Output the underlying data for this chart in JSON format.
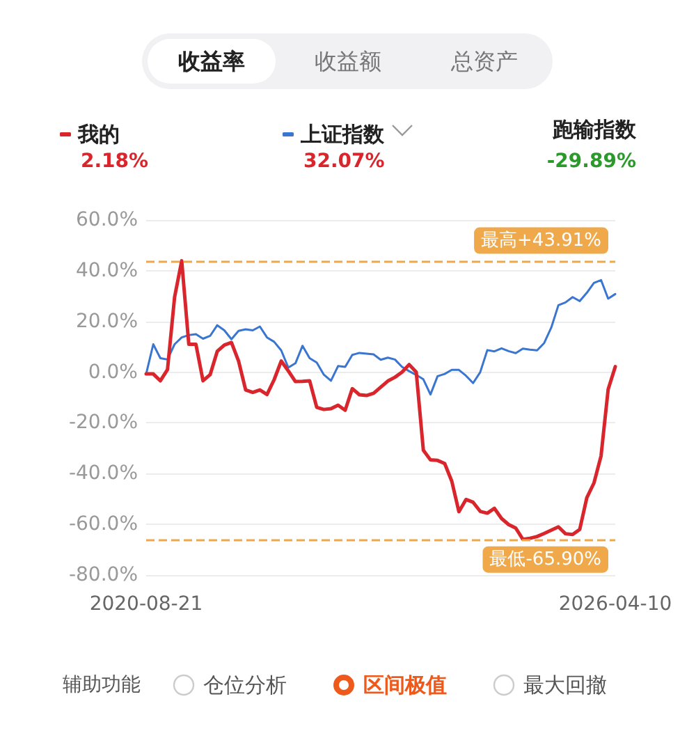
{
  "chart_data": {
    "type": "line",
    "categories": [
      "2020-08-21",
      null,
      null,
      null,
      null,
      null,
      null,
      null,
      null,
      null,
      null,
      null,
      null,
      null,
      null,
      null,
      null,
      null,
      null,
      null,
      null,
      null,
      null,
      null,
      null,
      null,
      null,
      null,
      null,
      null,
      null,
      null,
      null,
      null,
      null,
      null,
      null,
      null,
      null,
      null,
      null,
      null,
      null,
      null,
      null,
      null,
      null,
      null,
      null,
      null,
      null,
      null,
      null,
      null,
      null,
      null,
      null,
      null,
      null,
      null,
      null,
      null,
      null,
      null,
      null,
      null,
      "2026-04-10"
    ],
    "series": [
      {
        "name": "我的",
        "color": "#d9262c",
        "values": [
          -0.7,
          -0.7,
          -3.4,
          1,
          29.6,
          43.91,
          11,
          11,
          -3.4,
          -1,
          8.2,
          10.7,
          11.7,
          4.4,
          -7,
          -8,
          -7,
          -8.8,
          -3,
          4.4,
          0.5,
          -3.7,
          -3.6,
          -3.4,
          -13.9,
          -14.7,
          -14.4,
          -13,
          -15,
          -6.5,
          -8.9,
          -9.2,
          -8.3,
          -5.9,
          -3.5,
          -2,
          0,
          3,
          0,
          -30.8,
          -34.6,
          -34.8,
          -36,
          -43,
          -55,
          -50.2,
          -51.3,
          -54.9,
          -55.6,
          -53.7,
          -57.7,
          -60.1,
          -61.5,
          -65.9,
          -65.5,
          -64.8,
          -63.6,
          -62.3,
          -61,
          -63.7,
          -64,
          -62,
          -49.5,
          -43.7,
          -33,
          -6.8,
          2.18
        ]
      },
      {
        "name": "上证指数",
        "color": "#3a76d0",
        "values": [
          -0.7,
          11,
          5.5,
          5,
          11,
          13.7,
          14.6,
          15,
          13.2,
          14.3,
          18.5,
          16.5,
          13,
          16.3,
          16.9,
          16.5,
          18,
          13.7,
          12,
          8.6,
          1.8,
          3.5,
          10.4,
          5.5,
          3.8,
          -1,
          -3.4,
          2.4,
          2.1,
          6.8,
          7.6,
          7.3,
          7,
          4.9,
          5.7,
          5,
          2.1,
          0.4,
          -1.1,
          -2.8,
          -8.8,
          -1.6,
          -0.7,
          0.9,
          0.9,
          -1.4,
          -4.3,
          0,
          8.7,
          8.2,
          9.4,
          8.3,
          7.5,
          9.3,
          8.9,
          8.6,
          11.5,
          17.6,
          26.4,
          27.5,
          29.6,
          28,
          31.3,
          35.2,
          36.3,
          29,
          30.8
        ]
      }
    ],
    "ylim": [
      -80,
      60
    ],
    "yticks": [
      {
        "value": -80,
        "label": "-80.0%"
      },
      {
        "value": -60,
        "label": "-60.0%"
      },
      {
        "value": -40,
        "label": "-40.0%"
      },
      {
        "value": -20,
        "label": "-20.0%"
      },
      {
        "value": 0,
        "label": "0.0%"
      },
      {
        "value": 20,
        "label": "20.0%"
      },
      {
        "value": 40,
        "label": "40.0%"
      },
      {
        "value": 60,
        "label": "60.0%"
      }
    ],
    "grid": "y",
    "legend": "top",
    "marker": "none",
    "line_style": "solid",
    "ref_lines": [
      {
        "axis": "y",
        "value": 43.91,
        "label": "最高+43.91%",
        "color": "#f0a94a",
        "line_style": "dashed"
      },
      {
        "axis": "y",
        "value": -65.9,
        "label": "最低-65.90%",
        "color": "#f0a94a",
        "line_style": "dashed"
      }
    ],
    "annotations": [
      "收益率",
      "收益额",
      "总资产",
      "2.18%",
      "32.07%",
      "跑输指数",
      "-29.89%",
      "辅助功能",
      "仓位分析",
      "区间极值",
      "最大回撤"
    ]
  }
}
